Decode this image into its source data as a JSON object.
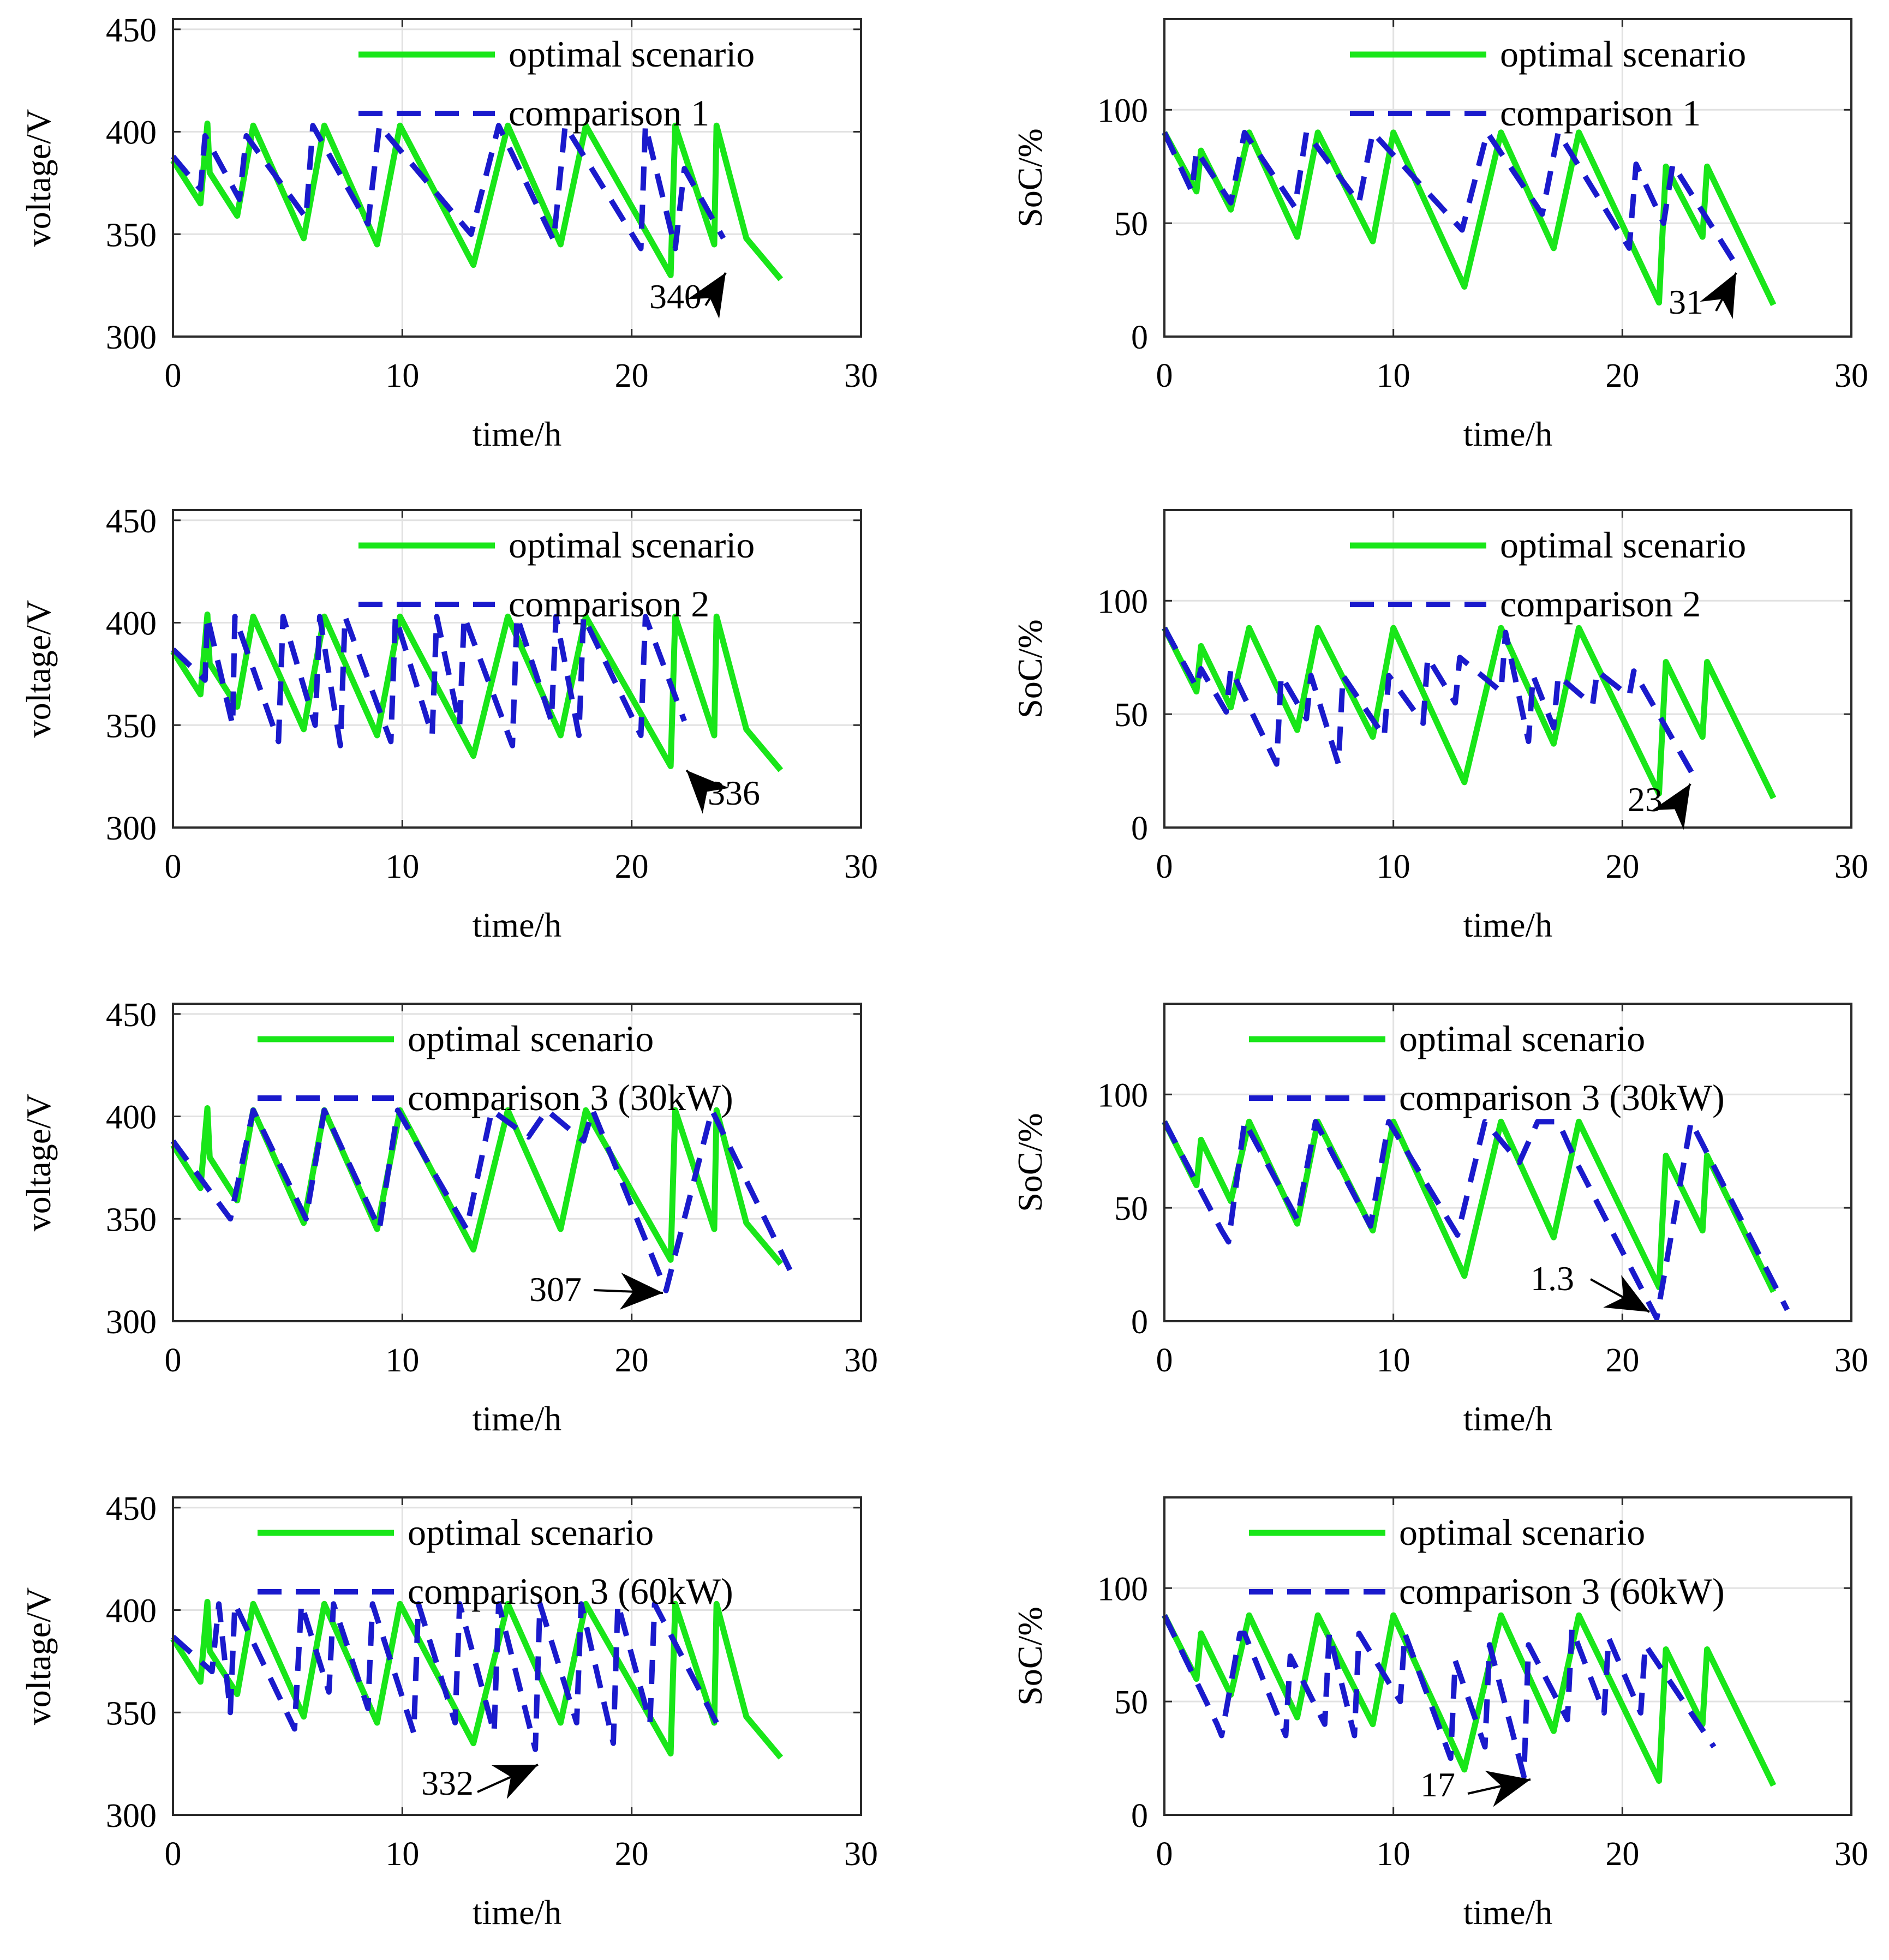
{
  "colors": {
    "optimal": "#19e619",
    "comparison": "#1a1acc",
    "grid": "#e2e2e2",
    "axis": "#2a2a2a",
    "arrow": "#000000"
  },
  "chart_data": [
    {
      "id": "p1",
      "type": "line",
      "xlabel": "time/h",
      "ylabel": "voltage/V",
      "xlim": [
        0,
        30
      ],
      "ylim": [
        300,
        455
      ],
      "xticks": [
        "0",
        "10",
        "20",
        "30"
      ],
      "yticks": [
        "300",
        "350",
        "400",
        "450"
      ],
      "legend": [
        "optimal scenario",
        "comparison 1"
      ],
      "annotation": {
        "text": "340",
        "dir": "upright"
      },
      "series": [
        {
          "name": "optimal scenario",
          "style": "solid",
          "x": [
            0,
            1.2,
            1.5,
            1.6,
            2.8,
            3.5,
            5.7,
            6.6,
            8.9,
            9.9,
            13.1,
            14.6,
            16.9,
            18.0,
            21.7,
            21.9,
            23.6,
            23.7,
            25.0,
            26.5
          ],
          "y": [
            386,
            365,
            404,
            380,
            359,
            403,
            348,
            403,
            345,
            403,
            335,
            403,
            345,
            403,
            330,
            403,
            345,
            403,
            348,
            328
          ]
        },
        {
          "name": "comparison 1",
          "style": "dashed",
          "x": [
            0,
            1.2,
            1.4,
            2.9,
            3.2,
            5.8,
            6.1,
            8.5,
            9.0,
            13.0,
            14.2,
            16.6,
            17.1,
            20.4,
            20.6,
            21.9,
            22.3,
            24.0
          ],
          "y": [
            388,
            372,
            398,
            367,
            398,
            358,
            403,
            355,
            403,
            350,
            403,
            347,
            403,
            343,
            403,
            343,
            382,
            348
          ]
        }
      ]
    },
    {
      "id": "p2",
      "type": "line",
      "xlabel": "time/h",
      "ylabel": "SoC/%",
      "xlim": [
        0,
        30
      ],
      "ylim": [
        0,
        140
      ],
      "xticks": [
        "0",
        "10",
        "20",
        "30"
      ],
      "yticks": [
        "0",
        "50",
        "100"
      ],
      "legend": [
        "optimal scenario",
        "comparison 1"
      ],
      "annotation": {
        "text": "31",
        "dir": "upright"
      },
      "series": [
        {
          "name": "optimal scenario",
          "style": "solid",
          "x": [
            0,
            1.4,
            1.6,
            2.9,
            3.7,
            5.8,
            6.7,
            9.1,
            10.0,
            13.1,
            14.7,
            17.0,
            18.1,
            21.6,
            21.9,
            23.5,
            23.7,
            26.6
          ],
          "y": [
            90,
            64,
            82,
            56,
            90,
            44,
            90,
            42,
            90,
            22,
            90,
            39,
            90,
            15,
            75,
            44,
            75,
            14
          ]
        },
        {
          "name": "comparison 1",
          "style": "dashed",
          "x": [
            0,
            1.2,
            1.4,
            2.9,
            3.5,
            5.7,
            6.2,
            8.5,
            9.1,
            13.0,
            14.1,
            16.5,
            17.2,
            20.3,
            20.6,
            21.8,
            22.2,
            25.0
          ],
          "y": [
            90,
            64,
            82,
            59,
            90,
            57,
            90,
            59,
            90,
            47,
            90,
            54,
            90,
            39,
            76,
            50,
            76,
            31
          ]
        }
      ]
    },
    {
      "id": "p3",
      "type": "line",
      "xlabel": "time/h",
      "ylabel": "voltage/V",
      "xlim": [
        0,
        30
      ],
      "ylim": [
        300,
        455
      ],
      "xticks": [
        "0",
        "10",
        "20",
        "30"
      ],
      "yticks": [
        "300",
        "350",
        "400",
        "450"
      ],
      "legend": [
        "optimal scenario",
        "comparison 2"
      ],
      "annotation": {
        "text": "336",
        "dir": "upleft"
      },
      "series": [
        {
          "name": "optimal scenario",
          "style": "solid",
          "x": [
            0,
            1.2,
            1.5,
            1.6,
            2.8,
            3.5,
            5.7,
            6.6,
            8.9,
            9.9,
            13.1,
            14.6,
            16.9,
            18.0,
            21.7,
            21.9,
            23.6,
            23.7,
            25.0,
            26.5
          ],
          "y": [
            386,
            365,
            404,
            380,
            359,
            403,
            348,
            403,
            345,
            403,
            335,
            403,
            345,
            403,
            330,
            403,
            345,
            403,
            348,
            328
          ]
        },
        {
          "name": "comparison 2",
          "style": "dashed",
          "x": [
            0,
            1.4,
            1.5,
            2.6,
            2.7,
            4.6,
            4.8,
            6.2,
            6.4,
            7.3,
            7.5,
            9.5,
            9.7,
            11.3,
            11.5,
            12.5,
            12.7,
            14.8,
            15.0,
            16.5,
            16.7,
            17.7,
            17.9,
            20.4,
            20.6,
            22.3
          ],
          "y": [
            387,
            372,
            403,
            350,
            403,
            342,
            403,
            350,
            403,
            340,
            403,
            342,
            403,
            345,
            403,
            350,
            403,
            340,
            403,
            352,
            403,
            345,
            403,
            345,
            403,
            352
          ]
        }
      ]
    },
    {
      "id": "p4",
      "type": "line",
      "xlabel": "time/h",
      "ylabel": "SoC/%",
      "xlim": [
        0,
        30
      ],
      "ylim": [
        0,
        140
      ],
      "xticks": [
        "0",
        "10",
        "20",
        "30"
      ],
      "yticks": [
        "0",
        "50",
        "100"
      ],
      "legend": [
        "optimal scenario",
        "comparison 2"
      ],
      "annotation": {
        "text": "23",
        "dir": "upright"
      },
      "series": [
        {
          "name": "optimal scenario",
          "style": "solid",
          "x": [
            0,
            1.4,
            1.6,
            2.9,
            3.7,
            5.8,
            6.7,
            9.1,
            10.0,
            13.1,
            14.7,
            17.0,
            18.1,
            21.6,
            21.9,
            23.5,
            23.7,
            26.6
          ],
          "y": [
            88,
            60,
            80,
            53,
            88,
            43,
            88,
            40,
            88,
            20,
            88,
            37,
            88,
            15,
            73,
            40,
            73,
            13
          ]
        },
        {
          "name": "comparison 2",
          "style": "dashed",
          "x": [
            0,
            1.4,
            1.6,
            2.7,
            2.9,
            4.9,
            5.1,
            6.2,
            6.4,
            7.6,
            7.8,
            9.6,
            9.8,
            11.3,
            11.5,
            12.7,
            12.9,
            14.7,
            14.9,
            15.9,
            16.1,
            17.0,
            17.2,
            18.7,
            18.9,
            20.3,
            20.5,
            23.1
          ],
          "y": [
            88,
            62,
            70,
            51,
            70,
            28,
            67,
            48,
            67,
            28,
            67,
            40,
            67,
            46,
            75,
            55,
            75,
            60,
            86,
            38,
            67,
            44,
            67,
            54,
            69,
            58,
            69,
            23
          ]
        }
      ]
    },
    {
      "id": "p5",
      "type": "line",
      "xlabel": "time/h",
      "ylabel": "voltage/V",
      "xlim": [
        0,
        30
      ],
      "ylim": [
        300,
        455
      ],
      "xticks": [
        "0",
        "10",
        "20",
        "30"
      ],
      "yticks": [
        "300",
        "350",
        "400",
        "450"
      ],
      "legend": [
        "optimal scenario",
        "comparison 3 (30kW)"
      ],
      "annotation": {
        "text": "307",
        "dir": "right"
      },
      "series": [
        {
          "name": "optimal scenario",
          "style": "solid",
          "x": [
            0,
            1.2,
            1.5,
            1.6,
            2.8,
            3.5,
            5.7,
            6.6,
            8.9,
            9.9,
            13.1,
            14.6,
            16.9,
            18.0,
            21.7,
            21.9,
            23.6,
            23.7,
            25.0,
            26.5
          ],
          "y": [
            386,
            365,
            404,
            380,
            359,
            403,
            348,
            403,
            345,
            403,
            335,
            403,
            345,
            403,
            330,
            403,
            345,
            403,
            348,
            328
          ]
        },
        {
          "name": "comparison 3 (30kW)",
          "style": "dashed",
          "x": [
            0,
            2.5,
            3.5,
            5.8,
            6.6,
            9.0,
            9.8,
            12.8,
            13.9,
            15.5,
            16.3,
            17.9,
            18.3,
            21.5,
            23.5,
            26.9
          ],
          "y": [
            388,
            350,
            403,
            350,
            403,
            345,
            403,
            345,
            403,
            390,
            403,
            388,
            403,
            315,
            403,
            325
          ]
        }
      ]
    },
    {
      "id": "p6",
      "type": "line",
      "xlabel": "time/h",
      "ylabel": "SoC/%",
      "xlim": [
        0,
        30
      ],
      "ylim": [
        0,
        140
      ],
      "xticks": [
        "0",
        "10",
        "20",
        "30"
      ],
      "yticks": [
        "0",
        "50",
        "100"
      ],
      "legend": [
        "optimal scenario",
        "comparison 3 (30kW)"
      ],
      "annotation": {
        "text": "1.3",
        "dir": "right"
      },
      "series": [
        {
          "name": "optimal scenario",
          "style": "solid",
          "x": [
            0,
            1.4,
            1.6,
            2.9,
            3.7,
            5.8,
            6.7,
            9.1,
            10.0,
            13.1,
            14.7,
            17.0,
            18.1,
            21.6,
            21.9,
            23.5,
            23.7,
            26.6
          ],
          "y": [
            88,
            60,
            80,
            53,
            88,
            43,
            88,
            40,
            88,
            20,
            88,
            37,
            88,
            15,
            73,
            40,
            73,
            13
          ]
        },
        {
          "name": "comparison 3 (30kW)",
          "style": "dashed",
          "x": [
            0,
            2.5,
            2.8,
            3.5,
            5.8,
            6.6,
            9.0,
            9.8,
            12.8,
            14.0,
            15.5,
            16.3,
            17.2,
            18.0,
            21.5,
            23.0,
            27.2
          ],
          "y": [
            88,
            40,
            35,
            88,
            45,
            88,
            42,
            88,
            38,
            88,
            70,
            88,
            88,
            70,
            1.3,
            88,
            5
          ]
        }
      ]
    },
    {
      "id": "p7",
      "type": "line",
      "xlabel": "time/h",
      "ylabel": "voltage/V",
      "xlim": [
        0,
        30
      ],
      "ylim": [
        300,
        455
      ],
      "xticks": [
        "0",
        "10",
        "20",
        "30"
      ],
      "yticks": [
        "300",
        "350",
        "400",
        "450"
      ],
      "legend": [
        "optimal scenario",
        "comparison 3 (60kW)"
      ],
      "annotation": {
        "text": "332",
        "dir": "upright"
      },
      "series": [
        {
          "name": "optimal scenario",
          "style": "solid",
          "x": [
            0,
            1.2,
            1.5,
            1.6,
            2.8,
            3.5,
            5.7,
            6.6,
            8.9,
            9.9,
            13.1,
            14.6,
            16.9,
            18.0,
            21.7,
            21.9,
            23.6,
            23.7,
            25.0,
            26.5
          ],
          "y": [
            386,
            365,
            404,
            380,
            359,
            403,
            348,
            403,
            345,
            403,
            335,
            403,
            345,
            403,
            330,
            403,
            345,
            403,
            348,
            328
          ]
        },
        {
          "name": "comparison 3 (60kW)",
          "style": "dashed",
          "x": [
            0,
            1.7,
            2.0,
            2.5,
            2.7,
            5.3,
            5.6,
            6.8,
            7.0,
            8.5,
            8.7,
            10.5,
            10.7,
            12.3,
            12.5,
            14.0,
            14.2,
            15.8,
            16.0,
            17.6,
            17.8,
            19.2,
            19.4,
            20.8,
            21.0,
            23.7
          ],
          "y": [
            387,
            370,
            403,
            350,
            403,
            342,
            403,
            360,
            403,
            352,
            403,
            340,
            403,
            345,
            403,
            340,
            403,
            332,
            403,
            345,
            403,
            335,
            403,
            345,
            403,
            345
          ]
        }
      ]
    },
    {
      "id": "p8",
      "type": "line",
      "xlabel": "time/h",
      "ylabel": "SoC/%",
      "xlim": [
        0,
        30
      ],
      "ylim": [
        0,
        140
      ],
      "xticks": [
        "0",
        "10",
        "20",
        "30"
      ],
      "yticks": [
        "0",
        "50",
        "100"
      ],
      "legend": [
        "optimal scenario",
        "comparison 3 (60kW)"
      ],
      "annotation": {
        "text": "17",
        "dir": "upright"
      },
      "series": [
        {
          "name": "optimal scenario",
          "style": "solid",
          "x": [
            0,
            1.4,
            1.6,
            2.9,
            3.7,
            5.8,
            6.7,
            9.1,
            10.0,
            13.1,
            14.7,
            17.0,
            18.1,
            21.6,
            21.9,
            23.5,
            23.7,
            26.6
          ],
          "y": [
            88,
            60,
            80,
            53,
            88,
            43,
            88,
            40,
            88,
            20,
            88,
            37,
            88,
            15,
            73,
            40,
            73,
            13
          ]
        },
        {
          "name": "comparison 3 (60kW)",
          "style": "dashed",
          "x": [
            0,
            2.3,
            2.5,
            3.3,
            3.5,
            5.3,
            5.5,
            7.0,
            7.2,
            8.3,
            8.5,
            10.3,
            10.5,
            12.5,
            12.7,
            14.0,
            14.2,
            15.7,
            15.9,
            17.6,
            17.8,
            19.2,
            19.4,
            20.8,
            21.0,
            24.0
          ],
          "y": [
            88,
            40,
            35,
            80,
            80,
            35,
            70,
            40,
            80,
            35,
            80,
            50,
            80,
            25,
            68,
            30,
            75,
            17,
            75,
            42,
            82,
            45,
            78,
            45,
            75,
            30
          ]
        }
      ]
    }
  ]
}
